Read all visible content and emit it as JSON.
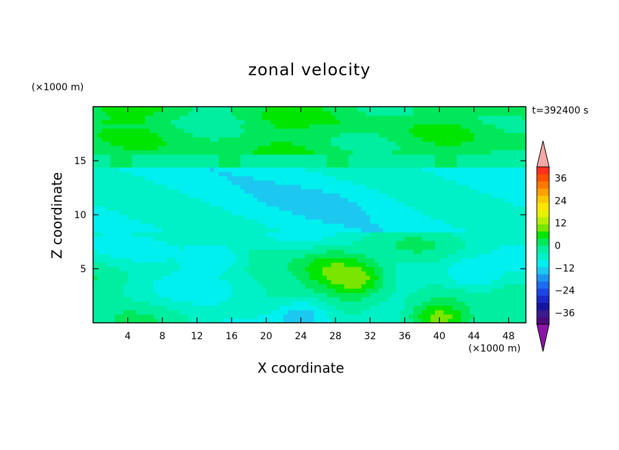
{
  "chart_data": {
    "type": "heatmap",
    "title": "zonal velocity",
    "xlabel": "X coordinate",
    "ylabel": "Z coordinate",
    "x_unit_label": "(×1000 m)",
    "y_unit_label": "(×1000 m)",
    "time_label": "t=392400 s",
    "x_range": [
      0,
      50
    ],
    "y_range": [
      0,
      20
    ],
    "x_ticks": [
      4,
      8,
      12,
      16,
      20,
      24,
      28,
      32,
      36,
      40,
      44,
      48
    ],
    "y_ticks": [
      5,
      10,
      15
    ],
    "colorbar": {
      "ticks": [
        36,
        24,
        12,
        0,
        -12,
        -24,
        -36
      ],
      "range": [
        -42,
        42
      ],
      "step": 4,
      "colors": [
        "#4a0a7a",
        "#3a1a8c",
        "#1414a0",
        "#1a28c8",
        "#1e46e6",
        "#1e6cf0",
        "#1e96f0",
        "#1cc8f0",
        "#00f0f0",
        "#00f0c8",
        "#00eea0",
        "#00e85a",
        "#00e600",
        "#7ae600",
        "#b4f000",
        "#e6f000",
        "#ffe600",
        "#ffc800",
        "#ffa000",
        "#ff7800",
        "#ff5000",
        "#ff3020"
      ],
      "over_color": "#f6a8a8",
      "under_color": "#8a16a8"
    },
    "field_description_values": {
      "upper_layer_z_above_15.5": [
        2,
        6
      ],
      "mid_layer_z_9_to_15": [
        -12,
        -4
      ],
      "lower_layer_z_0_to_8_blobs": [
        {
          "x": 27,
          "z": 5,
          "value": 8
        },
        {
          "x": 30,
          "z": 4.2,
          "value": 14
        },
        {
          "x": 14,
          "z": 6,
          "value": -10
        },
        {
          "x": 44,
          "z": 4.5,
          "value": -10
        },
        {
          "x": 24,
          "z": 0.6,
          "value": -12
        },
        {
          "x": 40,
          "z": 0.5,
          "value": 12
        }
      ]
    }
  }
}
